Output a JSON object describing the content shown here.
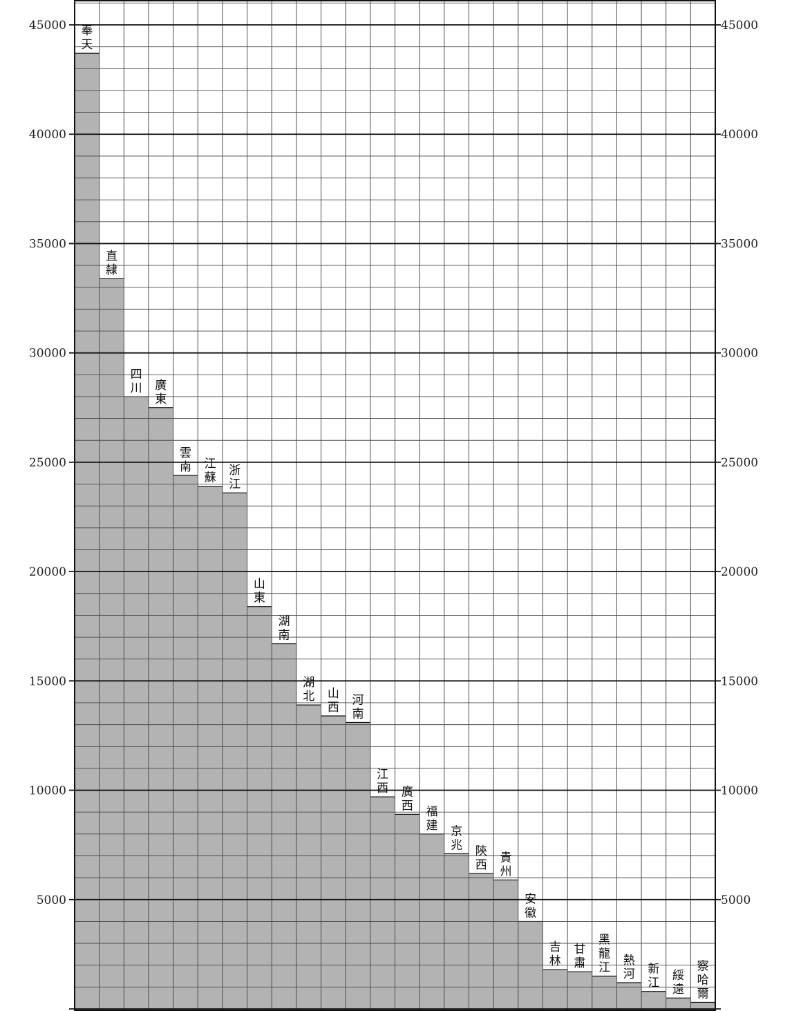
{
  "chart_data": {
    "type": "bar",
    "title": "",
    "xlabel": "",
    "ylabel": "",
    "ylim": [
      0,
      45000
    ],
    "grid": true,
    "y_ticks": [
      "45000",
      "40000",
      "35000",
      "30000",
      "25000",
      "20000",
      "15000",
      "10000",
      "5000"
    ],
    "y_tick_values": [
      45000,
      40000,
      35000,
      30000,
      25000,
      20000,
      15000,
      10000,
      5000
    ],
    "categories": [
      "奉天",
      "直隸",
      "四川",
      "廣東",
      "雲南",
      "江蘇",
      "浙江",
      "山東",
      "湖南",
      "湖北",
      "山西",
      "河南",
      "江西",
      "廣西",
      "福建",
      "京兆",
      "陝西",
      "貴州",
      "安徽",
      "吉林",
      "甘肅",
      "黑龍江",
      "熱河",
      "新江",
      "綏遠",
      "察哈爾"
    ],
    "values": [
      43700,
      33400,
      28000,
      27500,
      24400,
      23900,
      23600,
      18400,
      16700,
      13900,
      13400,
      13100,
      9700,
      8900,
      8000,
      7100,
      6200,
      5900,
      4000,
      1800,
      1700,
      1500,
      1200,
      800,
      500,
      300
    ],
    "colors": {
      "bar_fill": "#b3b3b3",
      "grid_minor": "#4a4a4a",
      "grid_major": "#111111",
      "background": "#ffffff"
    }
  }
}
